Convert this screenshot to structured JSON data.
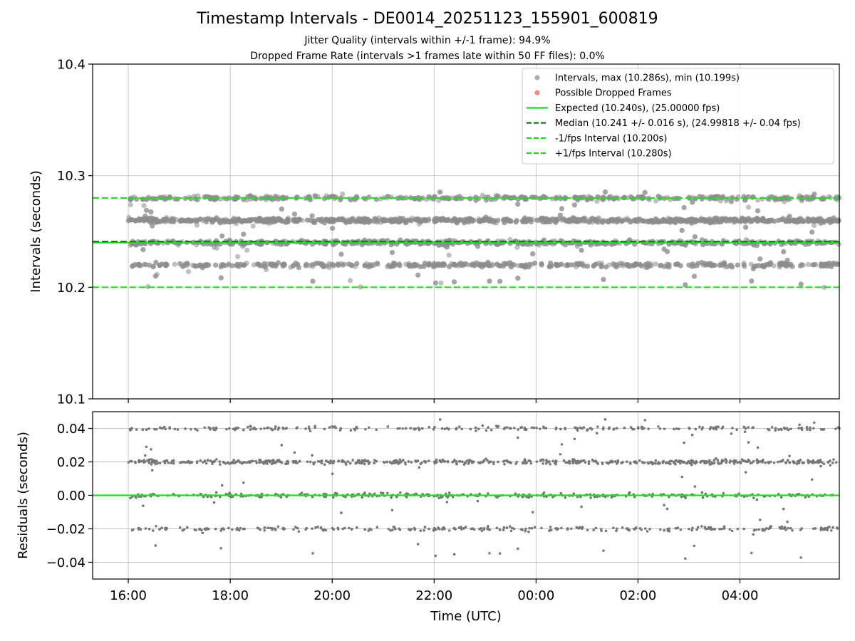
{
  "header": {
    "title": "Timestamp Intervals - DE0014_20251123_155901_600819",
    "subtitle_jitter": "Jitter Quality (intervals within +/-1 frame): 94.9%",
    "subtitle_dropped": "Dropped Frame Rate (intervals >1 frames late within 50 FF files): 0.0%"
  },
  "chart_data": [
    {
      "type": "scatter",
      "panel": "intervals",
      "ylabel": "Intervals (seconds)",
      "xlabel": "",
      "ylim": [
        10.1,
        10.4
      ],
      "xlim_hours": [
        15.3,
        29.95
      ],
      "yticks": [
        {
          "value": 10.1,
          "label": "10.1"
        },
        {
          "value": 10.2,
          "label": "10.2"
        },
        {
          "value": 10.3,
          "label": "10.3"
        },
        {
          "value": 10.4,
          "label": "10.4"
        }
      ],
      "grid": true,
      "legend_position": "top-right",
      "legend": [
        {
          "label": "Intervals, max (10.286s), min (10.199s)",
          "kind": "marker",
          "color": "#9a9a9a"
        },
        {
          "label": "Possible Dropped Frames",
          "kind": "marker",
          "color": "#f26b6b"
        },
        {
          "label": "Expected (10.240s), (25.00000 fps)",
          "kind": "line",
          "color": "#22dd22",
          "dash": "solid"
        },
        {
          "label": "Median (10.241 +/- 0.016 s), (24.99818 +/- 0.04 fps)",
          "kind": "line",
          "color": "#1f7a1f",
          "dash": "dashed"
        },
        {
          "label": "-1/fps Interval (10.200s)",
          "kind": "line",
          "color": "#22dd22",
          "dash": "dashed"
        },
        {
          "label": "+1/fps Interval (10.280s)",
          "kind": "line",
          "color": "#22dd22",
          "dash": "dashed"
        }
      ],
      "reference_lines": [
        {
          "name": "expected",
          "value": 10.24,
          "color": "#22dd22",
          "dash": "solid"
        },
        {
          "name": "median",
          "value": 10.241,
          "color": "#1f7a1f",
          "dash": "dashed"
        },
        {
          "name": "minus-one-frame",
          "value": 10.2,
          "color": "#22dd22",
          "dash": "dashed"
        },
        {
          "name": "plus-one-frame",
          "value": 10.28,
          "color": "#22dd22",
          "dash": "dashed"
        }
      ],
      "series": [
        {
          "name": "Intervals",
          "color": "#8c8c8c",
          "x_range_hours": [
            16.0,
            29.95
          ],
          "point_count": 3600,
          "value_levels": [
            {
              "value": 10.22,
              "share": 0.19
            },
            {
              "value": 10.24,
              "share": 0.23
            },
            {
              "value": 10.26,
              "share": 0.42
            },
            {
              "value": 10.28,
              "share": 0.16
            }
          ],
          "min": 10.199,
          "max": 10.286
        }
      ]
    },
    {
      "type": "scatter",
      "panel": "residuals",
      "ylabel": "Residuals (seconds)",
      "xlabel": "Time (UTC)",
      "ylim": [
        -0.05,
        0.05
      ],
      "xlim_hours": [
        15.3,
        29.95
      ],
      "yticks": [
        {
          "value": 0.04,
          "label": "0.04"
        },
        {
          "value": 0.02,
          "label": "0.02"
        },
        {
          "value": 0.0,
          "label": "0.00"
        },
        {
          "value": -0.02,
          "label": "−0.02"
        },
        {
          "value": -0.04,
          "label": "−0.04"
        }
      ],
      "xticks": [
        {
          "value": 16,
          "label": "16:00"
        },
        {
          "value": 18,
          "label": "18:00"
        },
        {
          "value": 20,
          "label": "20:00"
        },
        {
          "value": 22,
          "label": "22:00"
        },
        {
          "value": 24,
          "label": "00:00"
        },
        {
          "value": 26,
          "label": "02:00"
        },
        {
          "value": 28,
          "label": "04:00"
        }
      ],
      "grid": true,
      "reference_lines": [
        {
          "name": "zero",
          "value": 0.0,
          "color": "#22dd22",
          "dash": "solid"
        }
      ],
      "series": [
        {
          "name": "Residuals",
          "color": "#777777",
          "x_range_hours": [
            16.0,
            29.95
          ],
          "point_count": 3600,
          "value_levels": [
            {
              "value": -0.02,
              "share": 0.19
            },
            {
              "value": 0.0,
              "share": 0.23
            },
            {
              "value": 0.02,
              "share": 0.42
            },
            {
              "value": 0.04,
              "share": 0.16
            }
          ],
          "min": -0.041,
          "max": 0.046
        }
      ]
    }
  ]
}
